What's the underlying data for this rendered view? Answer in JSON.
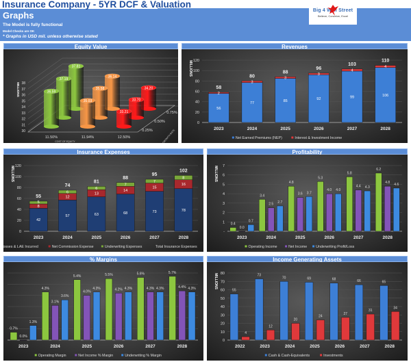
{
  "header": {
    "title": "Insurance Company - 5YR DCF & Valuation",
    "subtitle": "Graphs",
    "status": "The Model is fully functional",
    "checks": "Model Checks are OK",
    "note": "* Graphs in USD mil. unless otherwise stated"
  },
  "logo": {
    "name": "Big 4 Wall Street",
    "tagline": "Believe, Conceive, Excel"
  },
  "panels": [
    "Equity Value",
    "Revenues",
    "Insurance Expenses",
    "Profitability",
    "% Margins",
    "Income Generating Assets"
  ],
  "chart_data": [
    {
      "type": "bar3d",
      "title": "Equity Value",
      "ylabel": "MILLIONS",
      "xlabel": "COST OF EQUITY",
      "zlabel": "GROWTH RATE",
      "ylim": [
        30,
        38
      ],
      "yticks": [
        30,
        31,
        32,
        33,
        34,
        35,
        36,
        37,
        38
      ],
      "categories": [
        "11.50%",
        "11.94%",
        "12.50%"
      ],
      "depth_categories": [
        "0.25%",
        "0.50%",
        "0.75%"
      ],
      "values": [
        [
          36.59,
          37.19,
          37.81
        ],
        [
          35.03,
          35.58,
          36.14
        ],
        [
          33.21,
          33.7,
          34.2
        ]
      ],
      "colors": [
        "#8cc63f",
        "#f79646",
        "#ff1a1a"
      ]
    },
    {
      "type": "bar",
      "stacked": true,
      "title": "Revenues",
      "ylabel": "MILLIONS",
      "ylim": [
        0,
        120
      ],
      "yticks": [
        0,
        20,
        40,
        60,
        80,
        100,
        120
      ],
      "categories": [
        "2023",
        "2024",
        "2025",
        "2026",
        "2027",
        "2028"
      ],
      "series": [
        {
          "name": "Net Earned Premiums (NEP)",
          "values": [
            56,
            77,
            85,
            92,
            99,
            106
          ],
          "color": "#3d7fd6"
        },
        {
          "name": "Interest & Investment Income",
          "values": [
            2,
            3,
            3,
            3,
            4,
            4
          ],
          "color": "#e0393b"
        }
      ],
      "totals": [
        58,
        80,
        88,
        96,
        103,
        110
      ]
    },
    {
      "type": "bar",
      "stacked": true,
      "title": "Insurance Expenses",
      "ylabel": "MILLIONS",
      "ylim": [
        0,
        120
      ],
      "yticks": [
        0,
        20,
        40,
        60,
        80,
        100,
        120
      ],
      "categories": [
        "2023",
        "2024",
        "2025",
        "2026",
        "2027",
        "2028"
      ],
      "series": [
        {
          "name": "Losses & LAE Incurred",
          "values": [
            42,
            57,
            63,
            68,
            73,
            78
          ],
          "color": "#1f3e74"
        },
        {
          "name": "Net Commission Expense",
          "values": [
            8,
            12,
            13,
            14,
            15,
            16
          ],
          "color": "#a8282d"
        },
        {
          "name": "Underwriting Expenses",
          "values": [
            5,
            6,
            6,
            7,
            7,
            8
          ],
          "color": "#7aa83a"
        }
      ],
      "totals_name": "Total Insurance Expenses",
      "totals": [
        55,
        74,
        81,
        88,
        95,
        102
      ]
    },
    {
      "type": "bar",
      "stacked": false,
      "title": "Profitability",
      "ylabel": "MILLIONS",
      "ylim": [
        0,
        7
      ],
      "yticks": [
        0,
        1,
        2,
        3,
        4,
        5,
        6,
        7
      ],
      "yticklabels": [
        "-",
        "1",
        "2",
        "3",
        "4",
        "5",
        "6",
        "7"
      ],
      "number_format": "0.0",
      "categories": [
        "2023",
        "2024",
        "2025",
        "2026",
        "2027",
        "2028"
      ],
      "series": [
        {
          "name": "Operating Income",
          "values": [
            0.4,
            3.4,
            4.8,
            5.3,
            5.8,
            6.2
          ],
          "color": "#8cc63f"
        },
        {
          "name": "Net Income",
          "values": [
            0.0,
            2.5,
            3.6,
            4.0,
            4.4,
            4.8
          ],
          "color": "#8354b8"
        },
        {
          "name": "Underwriting Profit/Loss",
          "values": [
            0.7,
            2.7,
            3.7,
            4.0,
            4.3,
            4.6
          ],
          "color": "#3d8ae0"
        }
      ]
    },
    {
      "type": "bar",
      "stacked": false,
      "title": "% Margins",
      "ylim": [
        0,
        6
      ],
      "yticks": [
        0,
        1,
        2,
        3,
        4,
        5,
        6
      ],
      "show_y_axis": false,
      "number_format": "0.0%",
      "categories": [
        "2023",
        "2024",
        "2025",
        "2026",
        "2027",
        "2028"
      ],
      "series": [
        {
          "name": "Operating Margin",
          "values": [
            0.7,
            4.3,
            5.4,
            5.5,
            5.6,
            5.7
          ],
          "color": "#8cc63f"
        },
        {
          "name": "Net Income % Margin",
          "values": [
            0.0,
            3.1,
            4.0,
            4.2,
            4.3,
            4.4
          ],
          "color": "#8354b8"
        },
        {
          "name": "Underwriting % Margin",
          "values": [
            1.3,
            3.6,
            4.3,
            4.3,
            4.3,
            4.3
          ],
          "color": "#3d8ae0"
        }
      ]
    },
    {
      "type": "bar",
      "stacked": false,
      "title": "Income Generating Assets",
      "ylabel": "MILLIONS",
      "ylim": [
        0,
        80
      ],
      "yticks": [
        0,
        10,
        20,
        30,
        40,
        50,
        60,
        70,
        80
      ],
      "categories": [
        "2022",
        "2023",
        "2024",
        "2025",
        "2026",
        "2027",
        "2028"
      ],
      "series": [
        {
          "name": "Cash & Cash-Equivalents",
          "values": [
            55,
            73,
            70,
            69,
            68,
            66,
            65
          ],
          "color": "#3d7fd6"
        },
        {
          "name": "Investments",
          "values": [
            4,
            12,
            20,
            24,
            27,
            31,
            34
          ],
          "color": "#e0393b"
        }
      ]
    }
  ]
}
